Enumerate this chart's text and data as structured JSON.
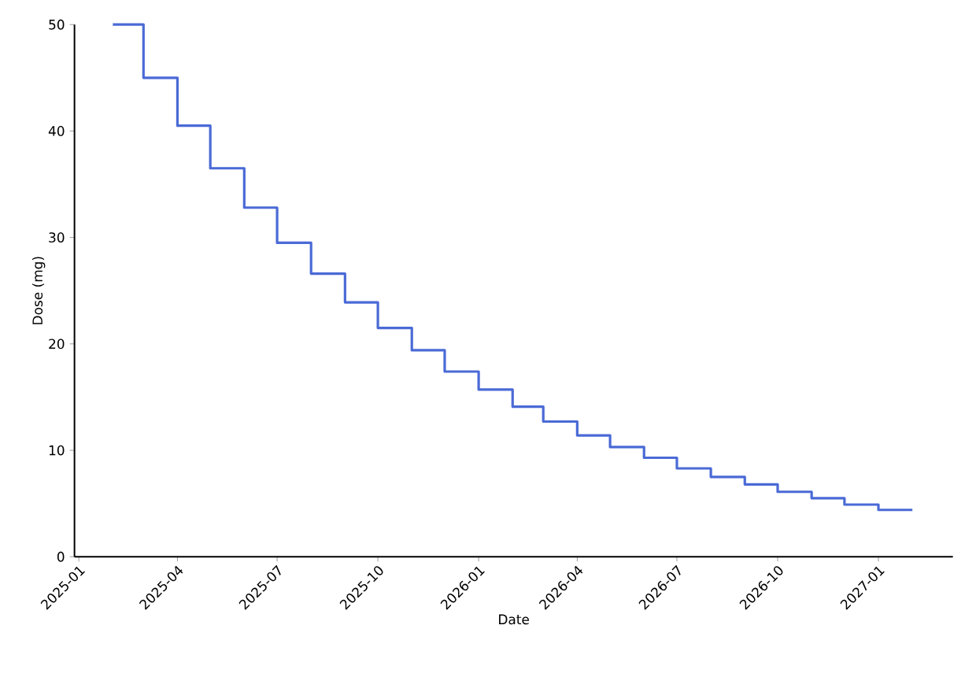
{
  "chart_data": {
    "type": "step",
    "xlabel": "Date",
    "ylabel": "Dose (mg)",
    "x": [
      "2025-02-01",
      "2025-03-01",
      "2025-04-01",
      "2025-05-01",
      "2025-06-01",
      "2025-07-01",
      "2025-08-01",
      "2025-09-01",
      "2025-10-01",
      "2025-11-01",
      "2025-12-01",
      "2026-01-01",
      "2026-02-01",
      "2026-03-01",
      "2026-04-01",
      "2026-05-01",
      "2026-06-01",
      "2026-07-01",
      "2026-08-01",
      "2026-09-01",
      "2026-10-01",
      "2026-11-01",
      "2026-12-01",
      "2027-01-01",
      "2027-02-01"
    ],
    "series": [
      {
        "color": "#4a6ad6",
        "values": [
          50,
          45,
          40.5,
          36.5,
          32.8,
          29.5,
          26.6,
          23.9,
          21.5,
          19.4,
          17.4,
          15.7,
          14.1,
          12.7,
          11.4,
          10.3,
          9.3,
          8.3,
          7.5,
          6.8,
          6.1,
          5.5,
          4.9,
          4.4,
          4.4
        ]
      }
    ],
    "xlim": [
      "2024-12-28",
      "2027-03-10"
    ],
    "ylim": [
      0,
      50
    ],
    "xticks": [
      {
        "value": "2025-01-01",
        "label": "2025-01"
      },
      {
        "value": "2025-04-01",
        "label": "2025-04"
      },
      {
        "value": "2025-07-01",
        "label": "2025-07"
      },
      {
        "value": "2025-10-01",
        "label": "2025-10"
      },
      {
        "value": "2026-01-01",
        "label": "2026-01"
      },
      {
        "value": "2026-04-01",
        "label": "2026-04"
      },
      {
        "value": "2026-07-01",
        "label": "2026-07"
      },
      {
        "value": "2026-10-01",
        "label": "2026-10"
      },
      {
        "value": "2027-01-01",
        "label": "2027-01"
      }
    ],
    "yticks": [
      0,
      10,
      20,
      30,
      40,
      50
    ],
    "grid": false,
    "marker": "none",
    "line_style": "solid"
  }
}
